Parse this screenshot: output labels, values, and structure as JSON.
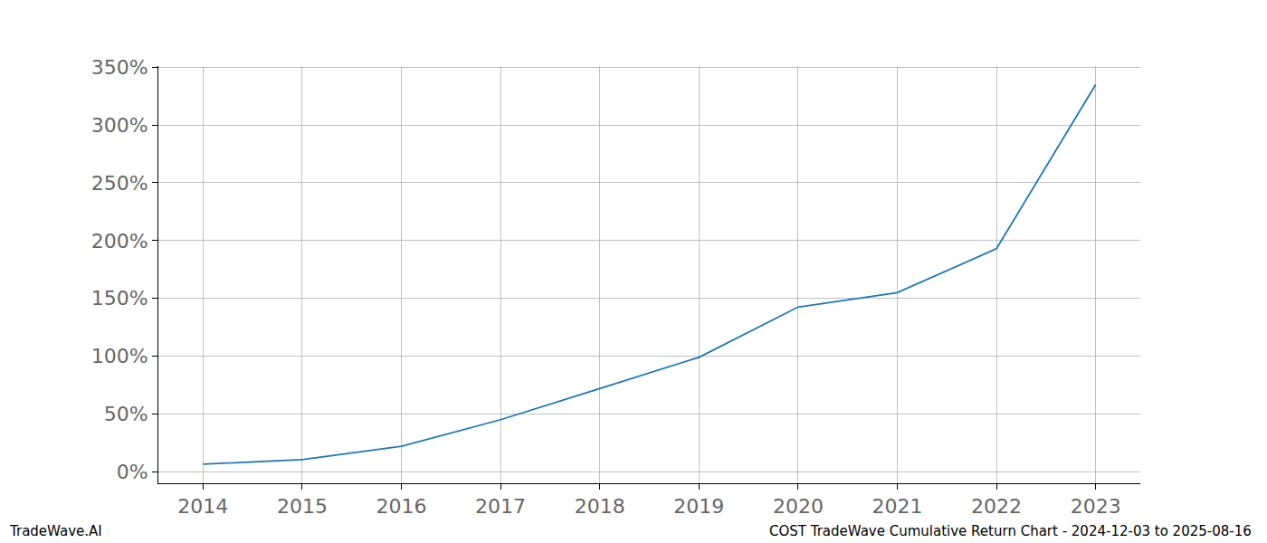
{
  "chart_data": {
    "type": "line",
    "title": "COST TradeWave Cumulative Return Chart - 2024-12-03 to 2025-08-16",
    "annotations": [
      "TradeWave.AI"
    ],
    "x": [
      2014,
      2015,
      2016,
      2017,
      2018,
      2019,
      2020,
      2021,
      2022,
      2023
    ],
    "values": [
      6.5,
      10.5,
      22,
      45,
      72,
      99,
      142.5,
      155,
      193,
      335
    ],
    "color": "#1f77b4",
    "xlim": [
      2013.55,
      2023.45
    ],
    "xticks": [
      2014,
      2015,
      2016,
      2017,
      2018,
      2019,
      2020,
      2021,
      2022,
      2023
    ],
    "ylim": [
      -10,
      351
    ],
    "yticks": [
      {
        "value": 0,
        "label": "0%"
      },
      {
        "value": 50,
        "label": "50%"
      },
      {
        "value": 100,
        "label": "100%"
      },
      {
        "value": 150,
        "label": "150%"
      },
      {
        "value": 200,
        "label": "200%"
      },
      {
        "value": 250,
        "label": "250%"
      },
      {
        "value": 300,
        "label": "300%"
      },
      {
        "value": 350,
        "label": "350%"
      }
    ],
    "grid": true
  }
}
